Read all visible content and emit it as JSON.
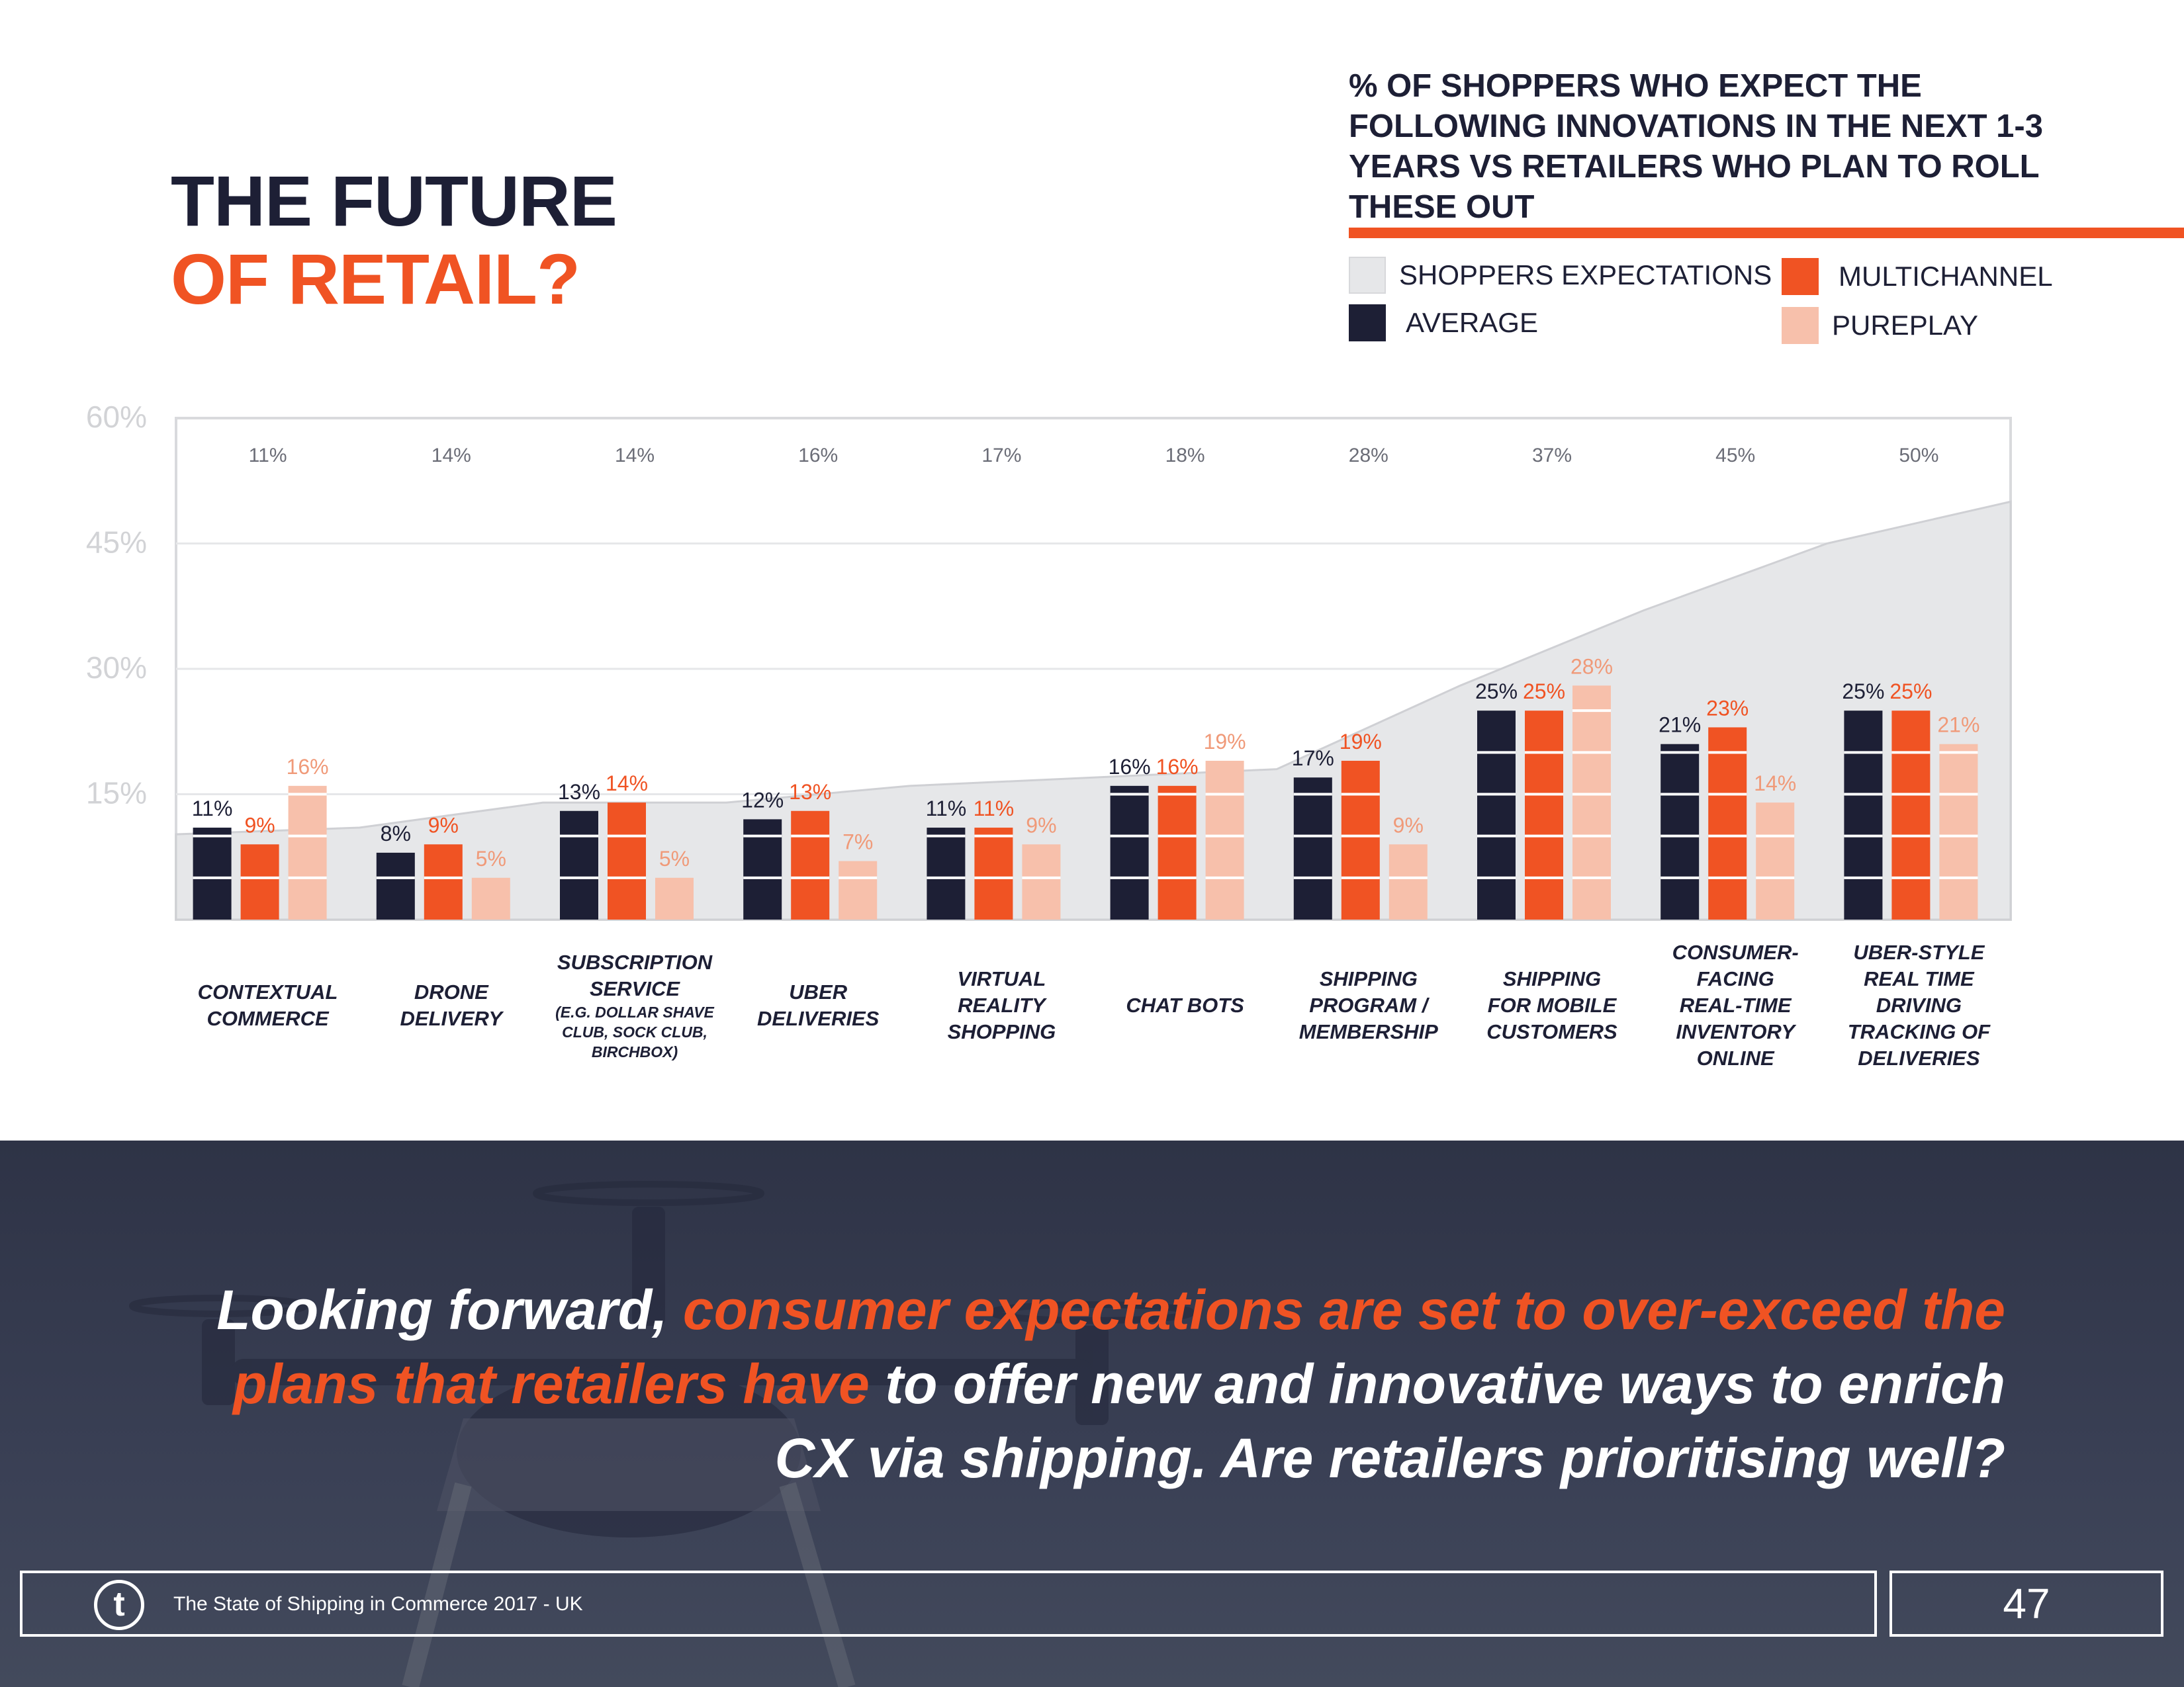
{
  "title": {
    "line1": "THE FUTURE",
    "line2": "OF RETAIL?"
  },
  "chart_heading": "% OF SHOPPERS WHO EXPECT THE FOLLOWING INNOVATIONS IN THE NEXT 1-3 YEARS VS RETAILERS WHO PLAN TO ROLL THESE OUT",
  "legend": {
    "shoppers": "SHOPPERS EXPECTATIONS",
    "average": "AVERAGE",
    "multichannel": "MULTICHANNEL",
    "pureplay": "PUREPLAY"
  },
  "colors": {
    "average": "#1d1f35",
    "multichannel": "#f05323",
    "pureplay": "#f7c0ab",
    "shoppers": "#e6e7e9",
    "axis_tick": "#d2d3d6"
  },
  "chart_data": {
    "type": "bar",
    "title": "% OF SHOPPERS WHO EXPECT THE FOLLOWING INNOVATIONS IN THE NEXT 1-3 YEARS VS RETAILERS WHO PLAN TO ROLL THESE OUT",
    "ylim": [
      0,
      60
    ],
    "yticks": [
      15,
      30,
      45,
      60
    ],
    "ytick_labels": [
      "15%",
      "30%",
      "45%",
      "60%"
    ],
    "categories": [
      "CONTEXTUAL COMMERCE",
      "DRONE DELIVERY",
      "SUBSCRIPTION SERVICE",
      "UBER DELIVERIES",
      "VIRTUAL REALITY SHOPPING",
      "CHAT BOTS",
      "SHIPPING PROGRAM / MEMBERSHIP",
      "SHIPPING FOR MOBILE CUSTOMERS",
      "CONSUMER-FACING REAL-TIME INVENTORY ONLINE",
      "UBER-STYLE REAL TIME DRIVING TRACKING OF DELIVERIES"
    ],
    "category_notes": [
      "",
      "",
      "(E.G. DOLLAR SHAVE CLUB, SOCK CLUB, BIRCHBOX)",
      "",
      "",
      "",
      "",
      "",
      "",
      ""
    ],
    "shoppers_expectations": {
      "name": "SHOPPERS EXPECTATIONS",
      "values": [
        11,
        14,
        14,
        16,
        17,
        18,
        28,
        37,
        45,
        50
      ],
      "labels": [
        "11%",
        "14%",
        "14%",
        "16%",
        "17%",
        "18%",
        "28%",
        "37%",
        "45%",
        "50%"
      ]
    },
    "series": [
      {
        "name": "AVERAGE",
        "values": [
          11,
          8,
          13,
          12,
          11,
          16,
          17,
          25,
          21,
          25
        ],
        "labels": [
          "11%",
          "8%",
          "13%",
          "12%",
          "11%",
          "16%",
          "17%",
          "25%",
          "21%",
          "25%"
        ]
      },
      {
        "name": "MULTICHANNEL",
        "values": [
          9,
          9,
          14,
          13,
          11,
          16,
          19,
          25,
          23,
          25
        ],
        "labels": [
          "9%",
          "9%",
          "14%",
          "13%",
          "11%",
          "16%",
          "19%",
          "25%",
          "23%",
          "25%"
        ]
      },
      {
        "name": "PUREPLAY",
        "values": [
          16,
          5,
          5,
          7,
          9,
          19,
          9,
          28,
          14,
          21
        ],
        "labels": [
          "16%",
          "5%",
          "5%",
          "7%",
          "9%",
          "19%",
          "9%",
          "28%",
          "14%",
          "21%"
        ]
      }
    ]
  },
  "quote": {
    "part1": "Looking forward, ",
    "part2": "consumer expectations are set to over-exceed the plans that retailers have",
    "part3": " to offer new and innovative ways to enrich CX via shipping. Are retailers prioritising well?"
  },
  "footer": {
    "logo": "t",
    "text": "The State of Shipping in Commerce 2017 - UK",
    "page": "47"
  }
}
